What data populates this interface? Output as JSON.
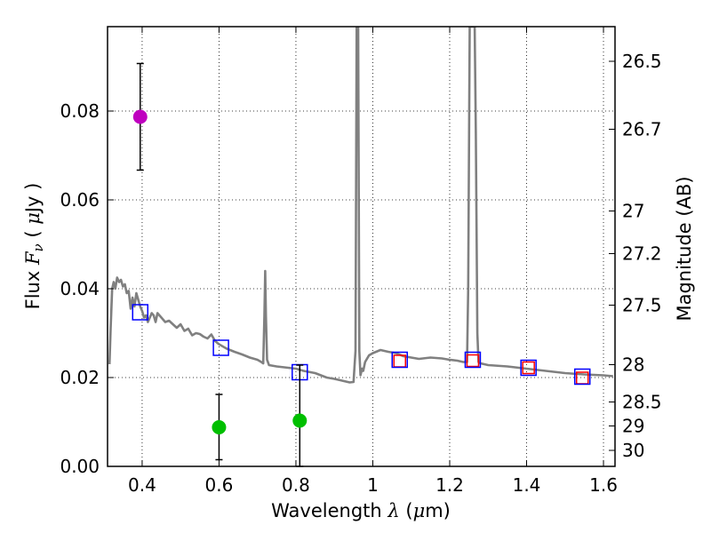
{
  "chart_data": {
    "type": "scatter",
    "xlabel": "Wavelength  λ (μm)",
    "xlabel_parts": [
      "Wavelength  ",
      "λ",
      " (",
      "μ",
      "m)"
    ],
    "ylabel": "Flux  Fν  ( μJy )",
    "ylabel_parts": [
      "Flux  ",
      "F",
      "ν",
      "  ( ",
      "μ",
      "Jy )"
    ],
    "y2label": "Magnitude (AB)",
    "xlim": [
      0.31,
      1.63
    ],
    "ylim": [
      0.0,
      0.099
    ],
    "grid": true,
    "x_ticks": [
      0.4,
      0.6,
      0.8,
      1.0,
      1.2,
      1.4,
      1.6
    ],
    "x_tick_labels": [
      "0.4",
      "0.6",
      "0.8",
      "1",
      "1.2",
      "1.4",
      "1.6"
    ],
    "y_ticks": [
      0.0,
      0.02,
      0.04,
      0.06,
      0.08
    ],
    "y_tick_labels": [
      "0.00",
      "0.02",
      "0.04",
      "0.06",
      "0.08"
    ],
    "y2_ticks": [
      {
        "label": "26.5",
        "flux": 0.0912
      },
      {
        "label": "26.7",
        "flux": 0.0759
      },
      {
        "label": "27",
        "flux": 0.0575
      },
      {
        "label": "27.2",
        "flux": 0.0479
      },
      {
        "label": "27.5",
        "flux": 0.0363
      },
      {
        "label": "28",
        "flux": 0.0229
      },
      {
        "label": "28.5",
        "flux": 0.0145
      },
      {
        "label": "29",
        "flux": 0.0091
      },
      {
        "label": "30",
        "flux": 0.0036
      }
    ],
    "series": [
      {
        "name": "model_spectrum",
        "kind": "line",
        "color": "#808080",
        "x": [
          0.315,
          0.318,
          0.322,
          0.326,
          0.33,
          0.335,
          0.34,
          0.345,
          0.35,
          0.355,
          0.36,
          0.365,
          0.37,
          0.375,
          0.38,
          0.385,
          0.39,
          0.395,
          0.4,
          0.405,
          0.41,
          0.415,
          0.42,
          0.425,
          0.43,
          0.435,
          0.44,
          0.45,
          0.46,
          0.47,
          0.48,
          0.49,
          0.5,
          0.51,
          0.52,
          0.53,
          0.54,
          0.55,
          0.56,
          0.57,
          0.58,
          0.59,
          0.6,
          0.62,
          0.64,
          0.66,
          0.68,
          0.7,
          0.71,
          0.715,
          0.718,
          0.72,
          0.722,
          0.725,
          0.73,
          0.75,
          0.78,
          0.8,
          0.82,
          0.85,
          0.88,
          0.9,
          0.92,
          0.94,
          0.95,
          0.955,
          0.958,
          0.962,
          0.965,
          0.968,
          0.972,
          0.975,
          0.98,
          0.99,
          1.0,
          1.02,
          1.04,
          1.06,
          1.08,
          1.1,
          1.12,
          1.15,
          1.18,
          1.2,
          1.22,
          1.235,
          1.245,
          1.248,
          1.252,
          1.255,
          1.258,
          1.262,
          1.265,
          1.268,
          1.272,
          1.275,
          1.28,
          1.3,
          1.35,
          1.4,
          1.45,
          1.5,
          1.55,
          1.6,
          1.625
        ],
        "y": [
          0.023,
          0.031,
          0.04,
          0.0415,
          0.04,
          0.0425,
          0.0415,
          0.042,
          0.0405,
          0.041,
          0.039,
          0.0395,
          0.0355,
          0.038,
          0.036,
          0.039,
          0.0375,
          0.036,
          0.035,
          0.0335,
          0.034,
          0.0325,
          0.0335,
          0.0345,
          0.034,
          0.0325,
          0.0345,
          0.0335,
          0.0325,
          0.0328,
          0.032,
          0.0312,
          0.032,
          0.0305,
          0.031,
          0.0295,
          0.03,
          0.0298,
          0.0292,
          0.0288,
          0.0297,
          0.0282,
          0.0275,
          0.0265,
          0.0258,
          0.0252,
          0.0245,
          0.024,
          0.0235,
          0.0232,
          0.034,
          0.044,
          0.034,
          0.024,
          0.0228,
          0.0225,
          0.0222,
          0.022,
          0.0215,
          0.021,
          0.02,
          0.0197,
          0.0193,
          0.0189,
          0.019,
          0.026,
          0.099,
          0.099,
          0.026,
          0.0205,
          0.022,
          0.0215,
          0.0235,
          0.025,
          0.0255,
          0.0262,
          0.0258,
          0.0255,
          0.0248,
          0.0245,
          0.0242,
          0.0245,
          0.0243,
          0.024,
          0.0238,
          0.0235,
          0.0235,
          0.04,
          0.099,
          0.099,
          0.099,
          0.099,
          0.099,
          0.075,
          0.03,
          0.0235,
          0.0232,
          0.0228,
          0.0225,
          0.022,
          0.0215,
          0.021,
          0.0207,
          0.0205,
          0.0203
        ]
      },
      {
        "name": "model_band_flux",
        "kind": "square-marker",
        "color": "#ff0000",
        "x": [
          1.07,
          1.26,
          1.405,
          1.545
        ],
        "y": [
          0.0237,
          0.0238,
          0.0222,
          0.0199
        ]
      },
      {
        "name": "observed_band_flux",
        "kind": "square-marker",
        "color": "#0000ff",
        "x": [
          0.395,
          0.605,
          0.81,
          1.07,
          1.26,
          1.405,
          1.545
        ],
        "y": [
          0.0347,
          0.0267,
          0.0212,
          0.024,
          0.024,
          0.0222,
          0.0202
        ]
      },
      {
        "name": "detections",
        "kind": "circle-with-errorbar",
        "points": [
          {
            "x": 0.395,
            "y": 0.0787,
            "ylo": 0.0667,
            "yhi": 0.0907,
            "color": "#bf00bf"
          },
          {
            "x": 0.6,
            "y": 0.0088,
            "ylo": 0.0015,
            "yhi": 0.0162,
            "color": "#00bf00"
          },
          {
            "x": 0.81,
            "y": 0.0103,
            "ylo": 0.0,
            "yhi": 0.0228,
            "color": "#00bf00"
          }
        ]
      }
    ]
  }
}
